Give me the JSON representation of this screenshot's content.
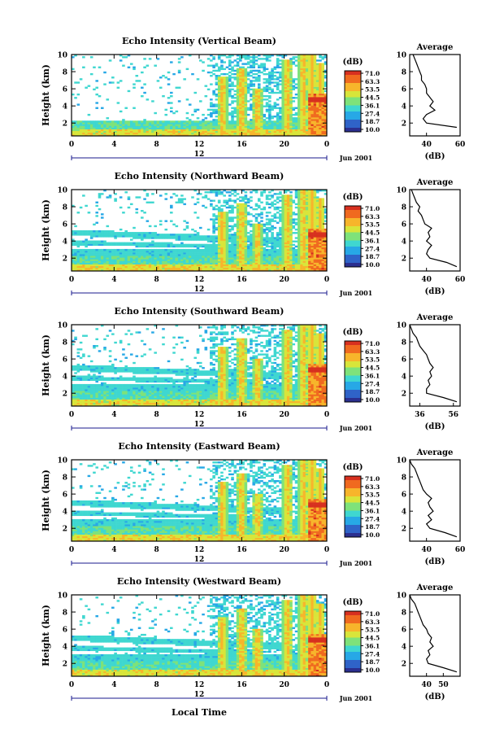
{
  "figure": {
    "xlabel": "Local Time",
    "date_label": "Jun 2001",
    "day_label": "12",
    "colorbar_unit": "(dB)",
    "colorbar_ticks": [
      "71.0",
      "63.3",
      "53.5",
      "44.5",
      "36.1",
      "27.4",
      "18.7",
      "10.0"
    ],
    "colorscale": [
      "#2b2f8f",
      "#2f63c8",
      "#27a8e6",
      "#3fd7d0",
      "#7ee27a",
      "#d8e53a",
      "#f7b52b",
      "#f06a1f",
      "#d7301f"
    ],
    "average_title": "Average",
    "average_unit": "(dB)",
    "ylabel": "Height (km)"
  },
  "chart_data": [
    {
      "type": "heatmap",
      "title": "Echo Intensity (Vertical Beam)",
      "xlabel": "",
      "ylabel": "Height (km)",
      "xlim": [
        0,
        24
      ],
      "ylim": [
        0.5,
        10
      ],
      "xticks": [
        "0",
        "4",
        "8",
        "12",
        "16",
        "20",
        "0"
      ],
      "yticks": [
        "2",
        "4",
        "6",
        "8",
        "10"
      ],
      "profile": {
        "type": "line",
        "title": "Average",
        "xlabel": "(dB)",
        "xlim": [
          30,
          60
        ],
        "xticks": [
          "40",
          "60"
        ],
        "yticks": [
          "2",
          "4",
          "6",
          "8",
          "10"
        ],
        "height": [
          1.5,
          2,
          2.5,
          3,
          3.5,
          4,
          4.5,
          5,
          5.5,
          6,
          6.5,
          7,
          7.5,
          8,
          8.5,
          9,
          9.5,
          10
        ],
        "value": [
          58,
          40,
          38,
          40,
          45,
          42,
          44,
          42,
          40,
          40,
          39,
          37,
          37,
          36,
          35,
          34,
          33,
          32
        ]
      }
    },
    {
      "type": "heatmap",
      "title": "Echo Intensity (Northward Beam)",
      "xlabel": "",
      "ylabel": "Height (km)",
      "xlim": [
        0,
        24
      ],
      "ylim": [
        0.5,
        10
      ],
      "xticks": [
        "0",
        "4",
        "8",
        "12",
        "16",
        "20",
        "0"
      ],
      "yticks": [
        "2",
        "4",
        "6",
        "8",
        "10"
      ],
      "profile": {
        "type": "line",
        "title": "Average",
        "xlabel": "(dB)",
        "xlim": [
          30,
          60
        ],
        "xticks": [
          "40",
          "60"
        ],
        "yticks": [
          "2",
          "4",
          "6",
          "8",
          "10"
        ],
        "height": [
          1,
          1.5,
          2,
          2.5,
          3,
          3.5,
          4,
          4.5,
          5,
          5.5,
          6,
          6.5,
          7,
          7.5,
          8,
          8.5,
          9,
          9.5,
          10
        ],
        "value": [
          58,
          52,
          42,
          40,
          41,
          43,
          40,
          42,
          41,
          43,
          39,
          38,
          37,
          35,
          36,
          34,
          33,
          32,
          31
        ]
      }
    },
    {
      "type": "heatmap",
      "title": "Echo Intensity (Southward Beam)",
      "xlabel": "",
      "ylabel": "Height (km)",
      "xlim": [
        0,
        24
      ],
      "ylim": [
        0.5,
        10
      ],
      "xticks": [
        "0",
        "4",
        "8",
        "12",
        "16",
        "20",
        "0"
      ],
      "yticks": [
        "2",
        "4",
        "6",
        "8",
        "10"
      ],
      "profile": {
        "type": "line",
        "title": "Average",
        "xlabel": "(dB)",
        "xlim": [
          30,
          60
        ],
        "xticks": [
          "36",
          "56"
        ],
        "yticks": [
          "2",
          "4",
          "6",
          "8",
          "10"
        ],
        "height": [
          1,
          1.5,
          2,
          2.5,
          3,
          3.5,
          4,
          4.5,
          5,
          5.5,
          6,
          6.5,
          7,
          7.5,
          8,
          8.5,
          9,
          9.5,
          10
        ],
        "value": [
          58,
          50,
          40,
          40,
          42,
          41,
          43,
          42,
          44,
          42,
          41,
          40,
          38,
          36,
          35,
          34,
          32,
          31,
          30
        ]
      }
    },
    {
      "type": "heatmap",
      "title": "Echo Intensity (Eastward Beam)",
      "xlabel": "",
      "ylabel": "Height (km)",
      "xlim": [
        0,
        24
      ],
      "ylim": [
        0.5,
        10
      ],
      "xticks": [
        "0",
        "4",
        "8",
        "12",
        "16",
        "20",
        "0"
      ],
      "yticks": [
        "2",
        "4",
        "6",
        "8",
        "10"
      ],
      "profile": {
        "type": "line",
        "title": "Average",
        "xlabel": "(dB)",
        "xlim": [
          30,
          60
        ],
        "xticks": [
          "40",
          "60"
        ],
        "yticks": [
          "2",
          "4",
          "6",
          "8",
          "10"
        ],
        "height": [
          1,
          1.5,
          2,
          2.5,
          3,
          3.5,
          4,
          4.5,
          5,
          5.5,
          6,
          6.5,
          7,
          7.5,
          8,
          8.5,
          9,
          9.5,
          10
        ],
        "value": [
          58,
          51,
          42,
          40,
          43,
          41,
          44,
          42,
          41,
          43,
          40,
          38,
          37,
          36,
          35,
          34,
          33,
          31,
          30
        ]
      }
    },
    {
      "type": "heatmap",
      "title": "Echo Intensity (Westward Beam)",
      "xlabel": "Local Time",
      "ylabel": "Height (km)",
      "xlim": [
        0,
        24
      ],
      "ylim": [
        0.5,
        10
      ],
      "xticks": [
        "0",
        "4",
        "8",
        "12",
        "16",
        "20",
        "0"
      ],
      "yticks": [
        "2",
        "4",
        "6",
        "8",
        "10"
      ],
      "profile": {
        "type": "line",
        "title": "Average",
        "xlabel": "(dB)",
        "xlim": [
          30,
          60
        ],
        "xticks": [
          "40",
          "50"
        ],
        "yticks": [
          "2",
          "4",
          "6",
          "8",
          "10"
        ],
        "height": [
          1,
          1.5,
          2,
          2.5,
          3,
          3.5,
          4,
          4.5,
          5,
          5.5,
          6,
          6.5,
          7,
          7.5,
          8,
          8.5,
          9,
          9.5,
          10
        ],
        "value": [
          58,
          50,
          41,
          40,
          42,
          41,
          44,
          42,
          43,
          41,
          40,
          38,
          37,
          36,
          35,
          34,
          33,
          31,
          30
        ]
      }
    }
  ]
}
